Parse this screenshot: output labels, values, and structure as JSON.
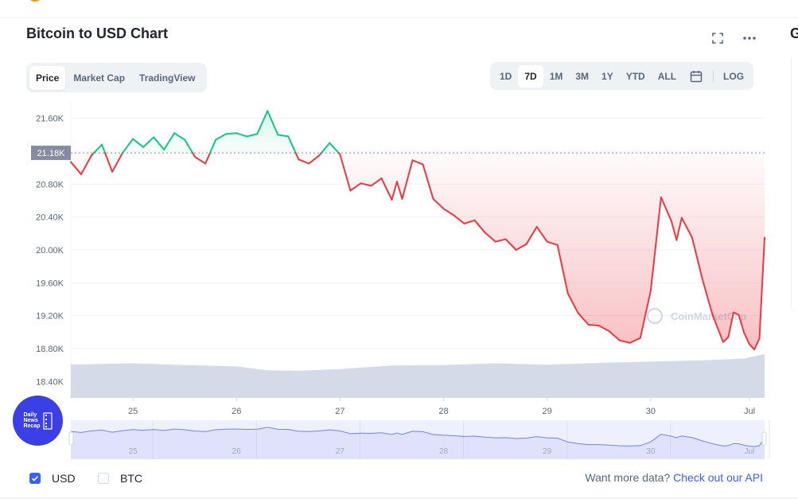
{
  "title": "Bitcoin to USD Chart",
  "right_cut_letter": "G",
  "tabs": [
    {
      "label": "Price",
      "active": true
    },
    {
      "label": "Market Cap",
      "active": false
    },
    {
      "label": "TradingView",
      "active": false
    }
  ],
  "ranges": [
    {
      "label": "1D",
      "active": false
    },
    {
      "label": "7D",
      "active": true
    },
    {
      "label": "1M",
      "active": false
    },
    {
      "label": "3M",
      "active": false
    },
    {
      "label": "1Y",
      "active": false
    },
    {
      "label": "YTD",
      "active": false
    },
    {
      "label": "ALL",
      "active": false
    }
  ],
  "log_label": "LOG",
  "icons": {
    "fullscreen": "fullscreen-icon",
    "more": "more-icon",
    "calendar": "calendar-icon"
  },
  "currency": {
    "usd_label": "USD",
    "usd_checked": true,
    "btc_label": "BTC",
    "btc_checked": false
  },
  "footer": {
    "prefix": "Want more data?",
    "link": "Check out our API"
  },
  "badge": {
    "line1": "Daily",
    "line2": "News",
    "line3": "Recap"
  },
  "watermark": "CoinMarketCap",
  "colors": {
    "up": "#16c784",
    "down": "#ea3943",
    "accent": "#3861fb",
    "volume": "#cfd6e4",
    "navigator": "#7385e6"
  },
  "chart_data": {
    "type": "line",
    "title": "Bitcoin to USD Chart",
    "ylabel": "",
    "xlabel": "",
    "ylim": [
      18200,
      21800
    ],
    "yticks": [
      "21.60K",
      "21.20K",
      "20.80K",
      "20.40K",
      "20.00K",
      "19.60K",
      "19.20K",
      "18.80K",
      "18.40K"
    ],
    "ytick_values": [
      21600,
      21200,
      20800,
      20400,
      20000,
      19600,
      19200,
      18800,
      18400
    ],
    "xlim": [
      24.4,
      31.1
    ],
    "xticks": [
      "25",
      "26",
      "27",
      "28",
      "29",
      "30",
      "Jul"
    ],
    "xtick_values": [
      25,
      26,
      27,
      28,
      29,
      30,
      31
    ],
    "reference_label": "21.18K",
    "reference_value": 21180,
    "grid": true,
    "series": [
      {
        "x": [
          24.4,
          24.5,
          24.6,
          24.7,
          24.8,
          24.9,
          25.0,
          25.1,
          25.2,
          25.3,
          25.4,
          25.5,
          25.6,
          25.7,
          25.8,
          25.9,
          26.0,
          26.1,
          26.2,
          26.3,
          26.4,
          26.5,
          26.6,
          26.7,
          26.8,
          26.9,
          27.0,
          27.1,
          27.2,
          27.3,
          27.4,
          27.5,
          27.55,
          27.6,
          27.7,
          27.8,
          27.9,
          28.0,
          28.1,
          28.2,
          28.3,
          28.4,
          28.5,
          28.6,
          28.7,
          28.8,
          28.9,
          29.0,
          29.1,
          29.2,
          29.3,
          29.4,
          29.5,
          29.6,
          29.7,
          29.8,
          29.9,
          30.0,
          30.1,
          30.2,
          30.25,
          30.3,
          30.4,
          30.5,
          30.6,
          30.7,
          30.75,
          30.8,
          30.85,
          30.9,
          30.95,
          31.0,
          31.05,
          31.1
        ],
        "values": [
          21070,
          20920,
          21150,
          21280,
          20950,
          21180,
          21350,
          21250,
          21370,
          21220,
          21420,
          21340,
          21130,
          21050,
          21340,
          21410,
          21420,
          21380,
          21410,
          21690,
          21400,
          21380,
          21100,
          21050,
          21150,
          21300,
          21160,
          20720,
          20810,
          20780,
          20870,
          20610,
          20830,
          20620,
          21090,
          21040,
          20620,
          20500,
          20420,
          20320,
          20360,
          20210,
          20100,
          20130,
          20000,
          20070,
          20280,
          20100,
          20060,
          19470,
          19230,
          19090,
          19080,
          19010,
          18900,
          18870,
          18930,
          19500,
          20640,
          20350,
          20120,
          20390,
          20150,
          19640,
          19200,
          18880,
          18940,
          19240,
          19210,
          19000,
          18860,
          18790,
          18920,
          20150
        ]
      }
    ],
    "volume": [
      {
        "x": 24.4,
        "rel": 0.76
      },
      {
        "x": 25.0,
        "rel": 0.79
      },
      {
        "x": 25.5,
        "rel": 0.75
      },
      {
        "x": 26.0,
        "rel": 0.72
      },
      {
        "x": 26.3,
        "rel": 0.63
      },
      {
        "x": 26.6,
        "rel": 0.62
      },
      {
        "x": 27.0,
        "rel": 0.66
      },
      {
        "x": 27.5,
        "rel": 0.74
      },
      {
        "x": 28.0,
        "rel": 0.75
      },
      {
        "x": 28.5,
        "rel": 0.79
      },
      {
        "x": 29.0,
        "rel": 0.76
      },
      {
        "x": 29.5,
        "rel": 0.8
      },
      {
        "x": 30.0,
        "rel": 0.83
      },
      {
        "x": 30.5,
        "rel": 0.86
      },
      {
        "x": 30.9,
        "rel": 0.9
      },
      {
        "x": 31.1,
        "rel": 1.0
      }
    ]
  }
}
